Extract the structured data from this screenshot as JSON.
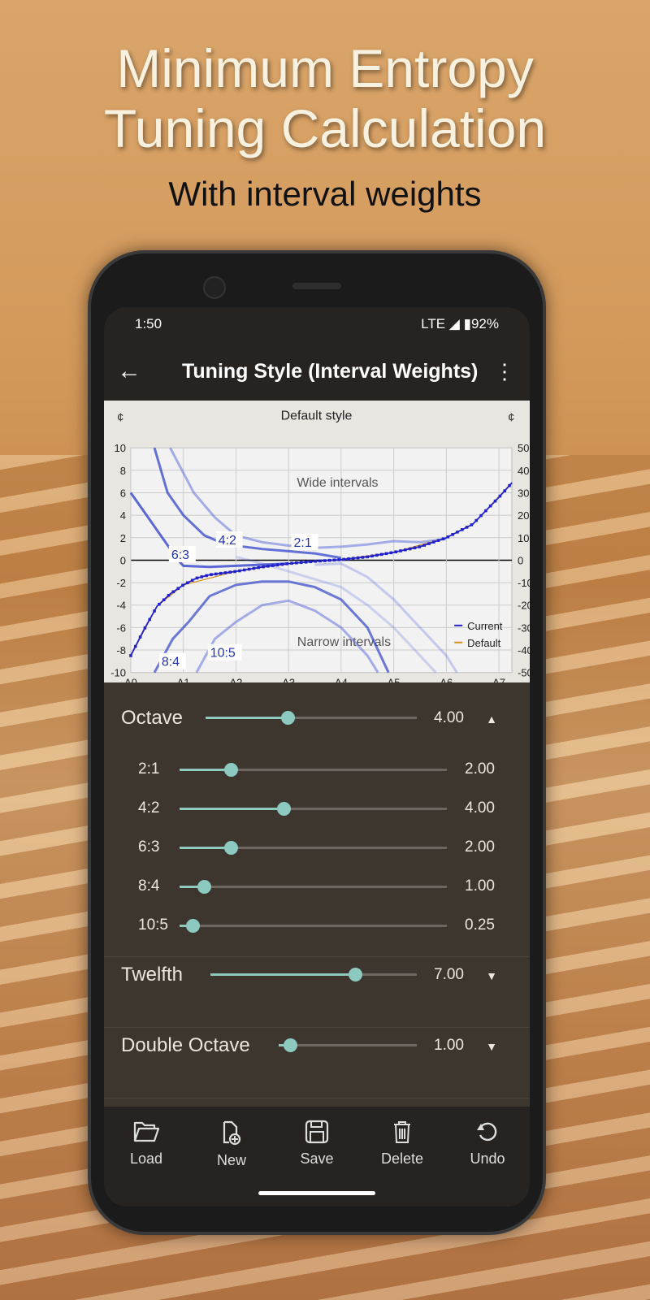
{
  "promo": {
    "title_line1": "Minimum Entropy",
    "title_line2": "Tuning Calculation",
    "subtitle": "With interval weights"
  },
  "status": {
    "time": "1:50",
    "network": "LTE",
    "battery": "92%"
  },
  "appbar": {
    "title": "Tuning Style (Interval Weights)",
    "back_icon": "arrow-left-icon",
    "menu_icon": "more-vert-icon"
  },
  "chart_data": {
    "type": "line",
    "title": "Default style",
    "left_unit": "¢",
    "right_unit": "¢",
    "x_ticks": [
      "A0",
      "A1",
      "A2",
      "A3",
      "A4",
      "A5",
      "A6",
      "A7"
    ],
    "ylim": [
      -10,
      10
    ],
    "y_ticks": [
      10,
      8,
      6,
      4,
      2,
      0,
      -2,
      -4,
      -6,
      -8,
      -10
    ],
    "y2lim": [
      -50,
      50
    ],
    "y2_ticks": [
      50,
      40,
      30,
      20,
      10,
      0,
      -10,
      -20,
      -30,
      -40,
      -50
    ],
    "grid": true,
    "annotations": {
      "wide": "Wide intervals",
      "narrow": "Narrow intervals"
    },
    "legend": {
      "position": "bottom-right",
      "items": [
        {
          "name": "Current",
          "color": "#2222cc"
        },
        {
          "name": "Default",
          "color": "#d4901c"
        }
      ]
    },
    "series": [
      {
        "name": "Current",
        "color": "#2222cc",
        "opacity": 1,
        "points": [
          [
            0,
            -8.5
          ],
          [
            0.25,
            -6.2
          ],
          [
            0.5,
            -4.1
          ],
          [
            0.75,
            -3
          ],
          [
            1,
            -2.2
          ],
          [
            1.25,
            -1.6
          ],
          [
            1.5,
            -1.3
          ],
          [
            2,
            -1
          ],
          [
            2.5,
            -0.6
          ],
          [
            3,
            -0.3
          ],
          [
            3.5,
            -0.1
          ],
          [
            4,
            0.05
          ],
          [
            4.5,
            0.3
          ],
          [
            5,
            0.7
          ],
          [
            5.5,
            1.2
          ],
          [
            6,
            2
          ],
          [
            6.5,
            3.2
          ],
          [
            7,
            5.6
          ],
          [
            7.25,
            6.9
          ]
        ]
      },
      {
        "name": "Default",
        "color": "#d4901c",
        "opacity": 1,
        "points": [
          [
            0,
            -8.5
          ],
          [
            0.5,
            -4.1
          ],
          [
            1,
            -2.2
          ],
          [
            2,
            -1
          ],
          [
            3,
            -0.3
          ],
          [
            4,
            0.05
          ],
          [
            5,
            0.7
          ],
          [
            6,
            2
          ],
          [
            6.5,
            3.2
          ],
          [
            7.25,
            6.9
          ]
        ]
      },
      {
        "label": "6:3",
        "color": "#3344cc",
        "opacity": 0.8,
        "points": [
          [
            0,
            6
          ],
          [
            0.3,
            4
          ],
          [
            0.6,
            2
          ],
          [
            0.9,
            0
          ],
          [
            1.0,
            -0.5
          ],
          [
            1.5,
            -0.6
          ],
          [
            2,
            -0.5
          ],
          [
            2.5,
            -0.4
          ],
          [
            3,
            -0.3
          ]
        ]
      },
      {
        "label": "4:2",
        "color": "#3344cc",
        "opacity": 0.75,
        "points": [
          [
            0.45,
            10
          ],
          [
            0.7,
            6
          ],
          [
            1,
            4
          ],
          [
            1.4,
            2.2
          ],
          [
            1.8,
            1.4
          ],
          [
            2.5,
            1
          ],
          [
            3,
            0.8
          ],
          [
            3.5,
            0.6
          ],
          [
            4,
            0.2
          ]
        ]
      },
      {
        "label": "2:1",
        "color": "#5566dd",
        "opacity": 0.5,
        "points": [
          [
            0.75,
            10
          ],
          [
            1.2,
            6
          ],
          [
            1.6,
            3.8
          ],
          [
            2,
            2.2
          ],
          [
            2.5,
            1.6
          ],
          [
            3,
            1.3
          ],
          [
            3.5,
            1.1
          ],
          [
            4,
            1.2
          ],
          [
            4.5,
            1.4
          ],
          [
            5,
            1.7
          ],
          [
            5.5,
            1.6
          ],
          [
            6,
            1.9
          ]
        ]
      },
      {
        "label": "8:4",
        "color": "#3344cc",
        "opacity": 0.7,
        "points": [
          [
            0.45,
            -10
          ],
          [
            0.8,
            -7
          ],
          [
            1.1,
            -5.5
          ],
          [
            1.5,
            -3.2
          ],
          [
            2,
            -2.2
          ],
          [
            2.5,
            -1.9
          ],
          [
            3,
            -1.9
          ],
          [
            3.5,
            -2.4
          ],
          [
            4,
            -3.5
          ],
          [
            4.5,
            -6
          ],
          [
            4.9,
            -10
          ]
        ]
      },
      {
        "label": "10:5",
        "color": "#5566dd",
        "opacity": 0.5,
        "points": [
          [
            1.25,
            -10
          ],
          [
            1.6,
            -7
          ],
          [
            2,
            -5.5
          ],
          [
            2.5,
            -4
          ],
          [
            3,
            -3.6
          ],
          [
            3.5,
            -4.5
          ],
          [
            4,
            -6
          ],
          [
            4.5,
            -8.5
          ],
          [
            4.7,
            -10
          ]
        ]
      },
      {
        "color": "#5566dd",
        "opacity": 0.3,
        "points": [
          [
            3.5,
            -0.4
          ],
          [
            4,
            -0.3
          ],
          [
            4.5,
            -1.5
          ],
          [
            5,
            -3.5
          ],
          [
            5.5,
            -6
          ],
          [
            6,
            -8.5
          ],
          [
            6.2,
            -10
          ]
        ]
      },
      {
        "color": "#5566dd",
        "opacity": 0.25,
        "points": [
          [
            2,
            0.3
          ],
          [
            2.5,
            -0.3
          ],
          [
            3,
            -1
          ],
          [
            3.5,
            -1.7
          ],
          [
            4,
            -2.4
          ],
          [
            4.5,
            -4
          ],
          [
            5,
            -6
          ],
          [
            5.5,
            -8.5
          ],
          [
            5.8,
            -10
          ]
        ]
      }
    ]
  },
  "weights": {
    "octave": {
      "label": "Octave",
      "value": "4.00",
      "fraction": 0.39,
      "expanded": true,
      "items": [
        {
          "label": "2:1",
          "value": "2.00",
          "fraction": 0.19
        },
        {
          "label": "4:2",
          "value": "4.00",
          "fraction": 0.39
        },
        {
          "label": "6:3",
          "value": "2.00",
          "fraction": 0.19
        },
        {
          "label": "8:4",
          "value": "1.00",
          "fraction": 0.09
        },
        {
          "label": "10:5",
          "value": "0.25",
          "fraction": 0.05
        }
      ]
    },
    "twelfth": {
      "label": "Twelfth",
      "value": "7.00",
      "fraction": 0.7
    },
    "double_octave": {
      "label": "Double Octave",
      "value": "1.00",
      "fraction": 0.08
    }
  },
  "toolbar": {
    "load": "Load",
    "new": "New",
    "save": "Save",
    "delete": "Delete",
    "undo": "Undo"
  }
}
